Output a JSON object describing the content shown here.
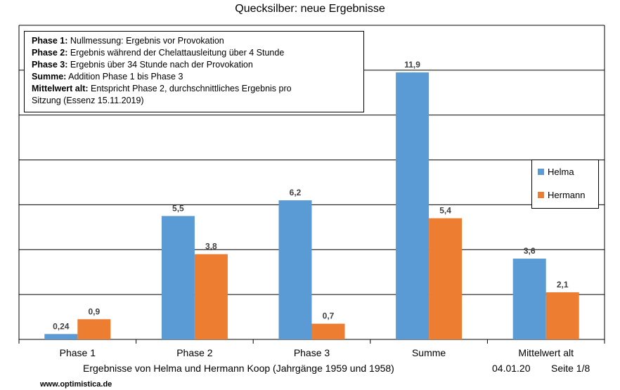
{
  "chart_data": {
    "type": "bar",
    "title": "Quecksilber: neue Ergebnisse",
    "categories": [
      "Phase 1",
      "Phase 2",
      "Phase 3",
      "Summe",
      "Mittelwert alt"
    ],
    "series": [
      {
        "name": "Helma",
        "values": [
          0.24,
          5.5,
          6.2,
          11.9,
          3.6
        ],
        "labels": [
          "0,24",
          "5,5",
          "6,2",
          "11,9",
          "3,6"
        ],
        "color": "#5b9bd5"
      },
      {
        "name": "Hermann",
        "values": [
          0.9,
          3.8,
          0.7,
          5.4,
          2.1
        ],
        "labels": [
          "0,9",
          "3,8",
          "0,7",
          "5,4",
          "2,1"
        ],
        "color": "#ed7d31"
      }
    ],
    "ylim": [
      0,
      14
    ],
    "grid": true,
    "legend_position": "right"
  },
  "notes": [
    {
      "term": "Phase 1:",
      "text": " Nullmessung: Ergebnis vor Provokation"
    },
    {
      "term": "Phase 2:",
      "text": " Ergebnis während der Chelattausleitung über 4 Stunde"
    },
    {
      "term": "Phase 3:",
      "text": " Ergebnis über 34 Stunde nach der Provokation"
    },
    {
      "term": "Summe:",
      "text": " Addition Phase 1 bis Phase 3"
    },
    {
      "term": "Mittelwert alt:",
      "text": " Entspricht Phase 2, durchschnittliches Ergebnis pro"
    },
    {
      "term": "",
      "text": "Sitzung (Essenz 15.11.2019)"
    }
  ],
  "footer": {
    "credit": "Ergebnisse von Helma und Hermann Koop (Jahrgänge 1959 und 1958)",
    "date": "04.01.20",
    "page": "Seite 1/8",
    "url": "www.optimistica.de"
  }
}
